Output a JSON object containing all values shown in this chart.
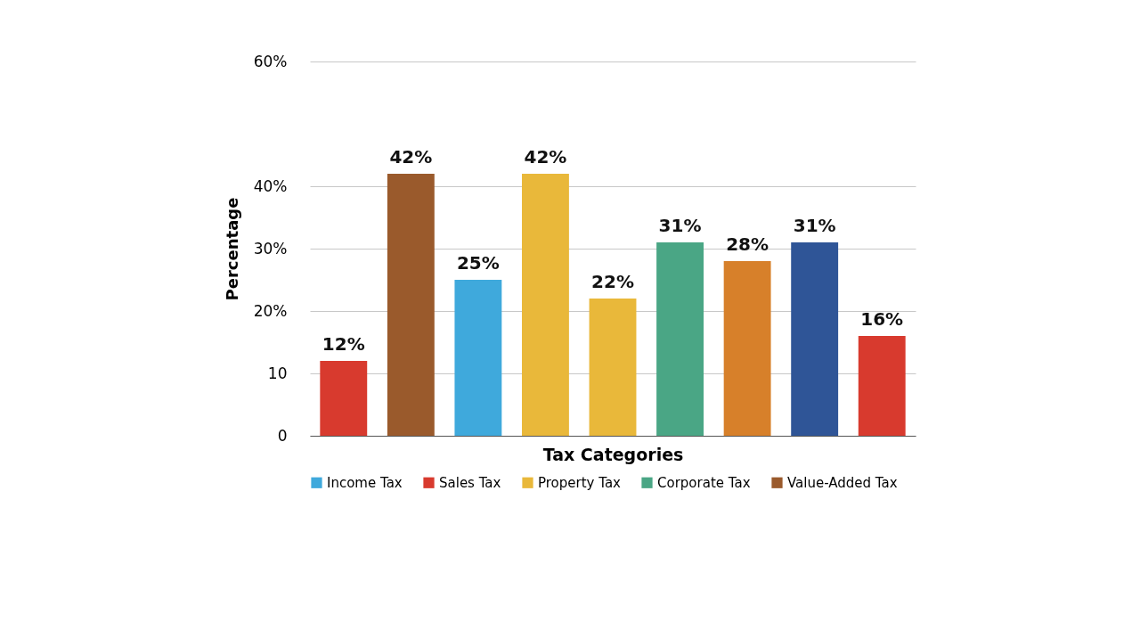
{
  "chart_data": {
    "type": "bar",
    "xlabel": "Tax Categories",
    "ylabel": "Percentage",
    "categories": [
      null,
      null,
      null,
      null,
      null,
      null,
      null,
      null,
      null
    ],
    "series": [
      {
        "name": "Income Tax",
        "color": "#3fa9dc",
        "values": [
          null,
          null,
          25,
          null,
          null,
          null,
          null,
          null,
          null
        ],
        "value_labels": [
          null,
          null,
          "25%",
          null,
          null,
          null,
          null,
          null,
          null
        ]
      },
      {
        "name": "Sales Tax",
        "color": "#d83a2e",
        "values": [
          12,
          null,
          null,
          null,
          null,
          null,
          null,
          null,
          16
        ],
        "value_labels": [
          "12%",
          null,
          null,
          null,
          null,
          null,
          null,
          null,
          "16%"
        ]
      },
      {
        "name": "Property Tax",
        "color": "#e9b83a",
        "values": [
          null,
          null,
          null,
          42,
          22,
          null,
          null,
          null,
          null
        ],
        "value_labels": [
          null,
          null,
          null,
          "42%",
          "22%",
          null,
          null,
          null,
          null
        ]
      },
      {
        "name": "Corporate Tax",
        "color": "#4aa685",
        "values": [
          null,
          null,
          null,
          null,
          null,
          31,
          null,
          null,
          null
        ],
        "value_labels": [
          null,
          null,
          null,
          null,
          null,
          "31%",
          null,
          null,
          null
        ]
      },
      {
        "name": "Value-Added Tax",
        "color": "#9a5a2c",
        "values": [
          null,
          42,
          null,
          null,
          null,
          null,
          null,
          null,
          null
        ],
        "value_labels": [
          null,
          "42%",
          null,
          null,
          null,
          null,
          null,
          null,
          null
        ]
      },
      {
        "color": "#d7802a",
        "values": [
          null,
          null,
          null,
          null,
          null,
          null,
          28,
          null,
          null
        ],
        "value_labels": [
          null,
          null,
          null,
          null,
          null,
          null,
          "28%",
          null,
          null
        ]
      },
      {
        "color": "#2f5597",
        "values": [
          null,
          null,
          null,
          null,
          null,
          null,
          null,
          31,
          null
        ],
        "value_labels": [
          null,
          null,
          null,
          null,
          null,
          null,
          null,
          "31%",
          null
        ]
      }
    ],
    "ylim": [
      0,
      60
    ],
    "yticks": [
      0,
      10,
      {
        "value": 20,
        "label": "20%"
      },
      {
        "value": 30,
        "label": "30%"
      },
      {
        "value": 40,
        "label": "40%"
      },
      {
        "value": 60,
        "label": "60%"
      }
    ],
    "grid": "y",
    "legend": "bottom",
    "tick_labels": "y"
  }
}
